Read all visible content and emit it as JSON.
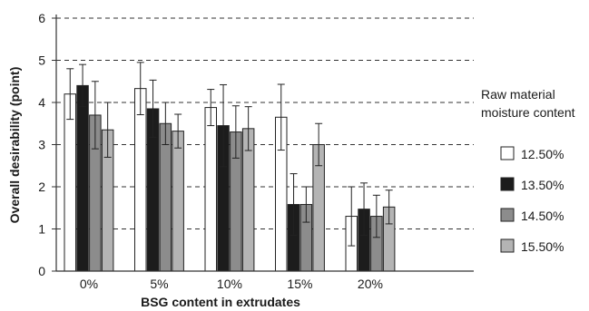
{
  "chart_data": {
    "type": "bar",
    "title": "",
    "xlabel": "BSG content in extrudates",
    "ylabel": "Overall desirability (point)",
    "ylim": [
      0,
      6
    ],
    "yticks": [
      "0",
      "1",
      "2",
      "3",
      "4",
      "5",
      "6"
    ],
    "grid": "horizontal dashed",
    "legend_placement": "right",
    "legend_title": [
      "Raw material",
      "moisture content"
    ],
    "categories": [
      "0%",
      "5%",
      "10%",
      "15%",
      "20%"
    ],
    "series": [
      {
        "name": "12.50%",
        "color": "#ffffff",
        "values": [
          4.2,
          4.33,
          3.88,
          3.65,
          1.3
        ],
        "errors": [
          0.6,
          0.62,
          0.43,
          0.78,
          0.7
        ]
      },
      {
        "name": "13.50%",
        "color": "#1c1c1c",
        "values": [
          4.4,
          3.85,
          3.45,
          1.58,
          1.47
        ],
        "errors": [
          0.5,
          0.68,
          0.97,
          0.73,
          0.62
        ]
      },
      {
        "name": "14.50%",
        "color": "#8c8c8c",
        "values": [
          3.7,
          3.5,
          3.3,
          1.58,
          1.3
        ],
        "errors": [
          0.8,
          0.5,
          0.62,
          0.42,
          0.5
        ]
      },
      {
        "name": "15.50%",
        "color": "#b4b4b4",
        "values": [
          3.35,
          3.32,
          3.38,
          3.0,
          1.52
        ],
        "errors": [
          0.65,
          0.4,
          0.52,
          0.5,
          0.4
        ]
      }
    ]
  }
}
